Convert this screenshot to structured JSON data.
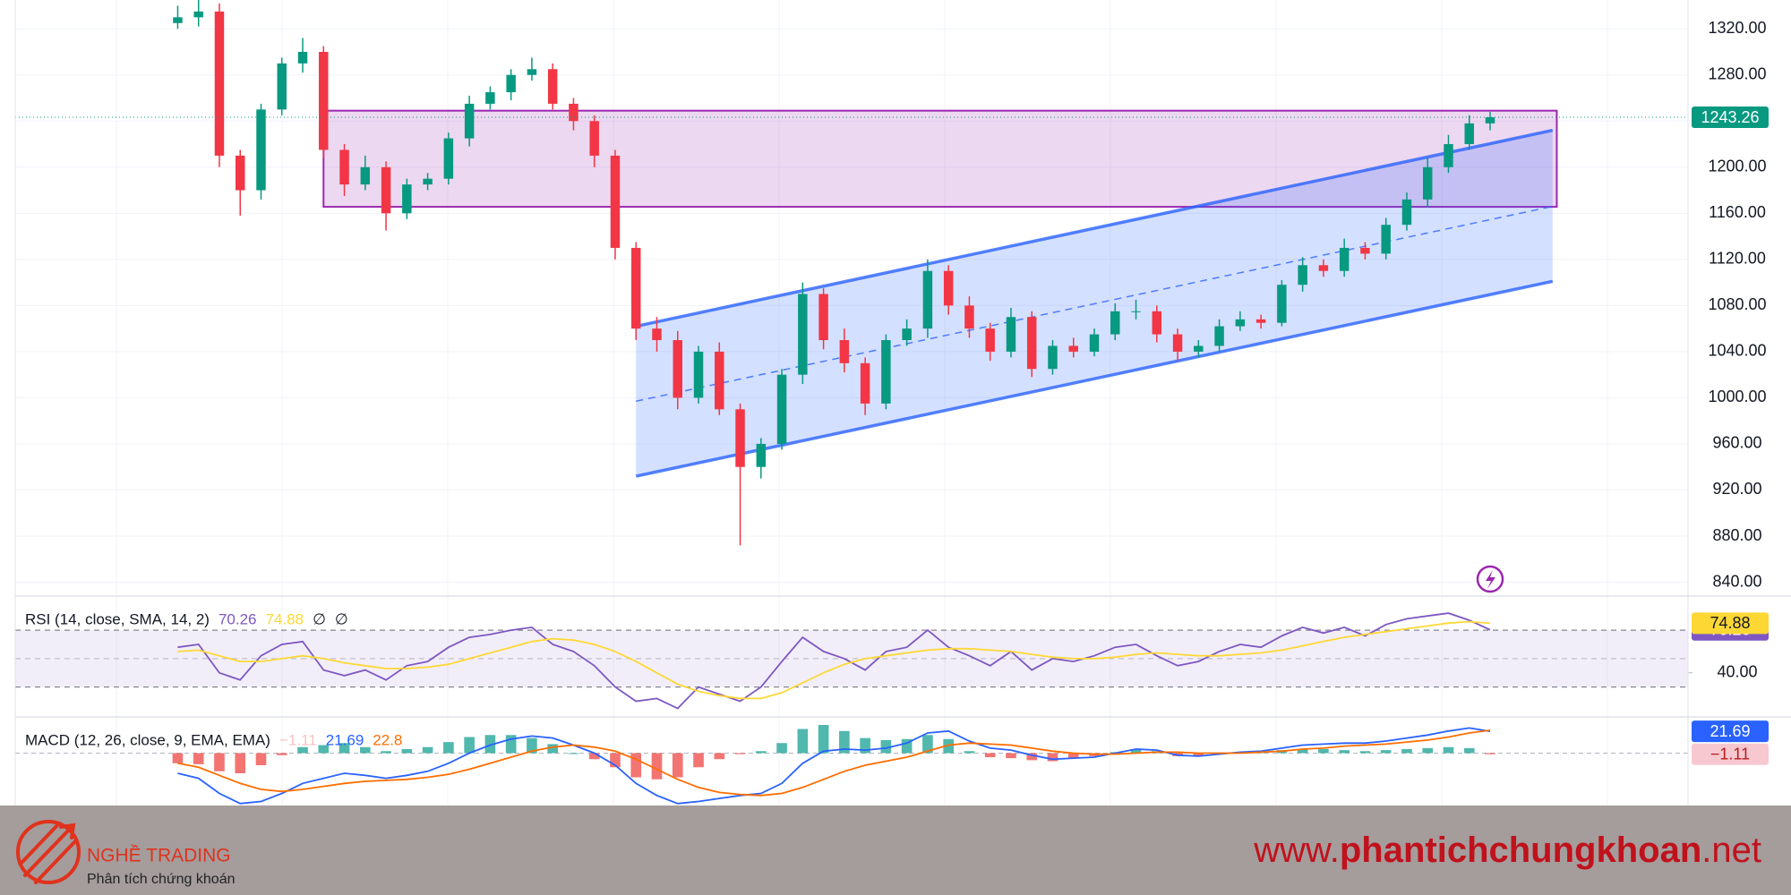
{
  "chart_data": [
    {
      "type": "candlestick",
      "xlim": [
        -7.8,
        72.5
      ],
      "ylim": [
        828,
        1345
      ],
      "yticks": [
        {
          "value": 840,
          "label": "840.00"
        },
        {
          "value": 880,
          "label": "880.00"
        },
        {
          "value": 920,
          "label": "920.00"
        },
        {
          "value": 960,
          "label": "960.00"
        },
        {
          "value": 1000,
          "label": "1000.00"
        },
        {
          "value": 1040,
          "label": "1040.00"
        },
        {
          "value": 1080,
          "label": "1080.00"
        },
        {
          "value": 1120,
          "label": "1120.00"
        },
        {
          "value": 1160,
          "label": "1160.00"
        },
        {
          "value": 1200,
          "label": "1200.00"
        },
        {
          "value": 1240,
          "label": "1240.00"
        },
        {
          "value": 1280,
          "label": "1280.00"
        },
        {
          "value": 1320,
          "label": "1320.00"
        }
      ],
      "grid": true,
      "up_color": "#089981",
      "down_color": "#f23645",
      "open": [
        1325,
        1330,
        1335,
        1210,
        1180,
        1250,
        1290,
        1300,
        1215,
        1185,
        1200,
        1160,
        1185,
        1190,
        1225,
        1255,
        1265,
        1280,
        1285,
        1255,
        1240,
        1210,
        1130,
        1060,
        1050,
        1000,
        1040,
        990,
        940,
        960,
        1020,
        1090,
        1050,
        1030,
        995,
        1050,
        1060,
        1110,
        1080,
        1060,
        1040,
        1070,
        1025,
        1045,
        1040,
        1055,
        1075,
        1075,
        1055,
        1040,
        1045,
        1062,
        1068,
        1065,
        1098,
        1115,
        1110,
        1130,
        1125,
        1150,
        1172,
        1200,
        1220,
        1238
      ],
      "high": [
        1340,
        1345,
        1342,
        1215,
        1255,
        1295,
        1312,
        1305,
        1220,
        1210,
        1205,
        1190,
        1195,
        1230,
        1262,
        1270,
        1285,
        1295,
        1290,
        1260,
        1245,
        1215,
        1135,
        1070,
        1058,
        1045,
        1048,
        995,
        965,
        1025,
        1100,
        1095,
        1060,
        1035,
        1055,
        1068,
        1120,
        1115,
        1088,
        1065,
        1078,
        1075,
        1050,
        1052,
        1060,
        1082,
        1085,
        1080,
        1060,
        1050,
        1068,
        1075,
        1072,
        1102,
        1122,
        1120,
        1138,
        1135,
        1156,
        1178,
        1208,
        1228,
        1245,
        1248
      ],
      "low": [
        1320,
        1322,
        1200,
        1158,
        1172,
        1245,
        1282,
        1208,
        1175,
        1180,
        1145,
        1155,
        1180,
        1185,
        1218,
        1250,
        1258,
        1275,
        1250,
        1232,
        1200,
        1120,
        1050,
        1040,
        990,
        995,
        985,
        872,
        930,
        955,
        1012,
        1042,
        1022,
        985,
        990,
        1045,
        1052,
        1072,
        1052,
        1032,
        1035,
        1018,
        1020,
        1035,
        1036,
        1050,
        1068,
        1048,
        1032,
        1035,
        1040,
        1058,
        1060,
        1062,
        1092,
        1105,
        1105,
        1120,
        1120,
        1145,
        1165,
        1195,
        1215,
        1232
      ],
      "close": [
        1330,
        1335,
        1210,
        1180,
        1250,
        1290,
        1300,
        1215,
        1185,
        1200,
        1160,
        1185,
        1190,
        1225,
        1255,
        1265,
        1280,
        1285,
        1255,
        1240,
        1210,
        1130,
        1060,
        1050,
        1000,
        1040,
        990,
        940,
        960,
        1020,
        1090,
        1050,
        1030,
        995,
        1050,
        1060,
        1110,
        1080,
        1060,
        1040,
        1070,
        1025,
        1045,
        1040,
        1055,
        1075,
        1075,
        1055,
        1040,
        1045,
        1062,
        1068,
        1065,
        1098,
        1115,
        1110,
        1130,
        1125,
        1150,
        1172,
        1200,
        1220,
        1238,
        1243.26
      ],
      "overlays": [
        {
          "type": "rectangle",
          "x": [
            7,
            66.2
          ],
          "y": [
            1165.6,
            1249
          ],
          "color": "#9c27b0"
        },
        {
          "type": "channel",
          "x": [
            22,
            66
          ],
          "upper": [
            1062,
            1232
          ],
          "middle": [
            997,
            1166
          ],
          "lower": [
            932,
            1101
          ],
          "color": "#2962ff"
        }
      ]
    },
    {
      "type": "rsi",
      "title": "RSI (14, close, SMA, 14, 2)",
      "legend_extra": [
        "∅",
        "∅"
      ],
      "xlim": [
        -7.8,
        72.5
      ],
      "ylim": [
        9,
        94
      ],
      "yticks": [
        {
          "value": 40,
          "label": "40.00"
        }
      ],
      "bands": [
        30,
        50,
        70
      ],
      "band_color": "#7e57c2",
      "series": [
        {
          "color": "#7e57c2",
          "values": [
            58,
            60,
            40,
            35,
            52,
            60,
            62,
            42,
            38,
            42,
            35,
            45,
            48,
            58,
            65,
            67,
            70,
            72,
            60,
            55,
            45,
            30,
            20,
            22,
            15,
            30,
            25,
            20,
            30,
            48,
            65,
            55,
            50,
            42,
            55,
            58,
            70,
            58,
            52,
            45,
            55,
            42,
            50,
            48,
            52,
            58,
            60,
            52,
            45,
            48,
            55,
            60,
            58,
            66,
            72,
            68,
            72,
            66,
            74,
            78,
            80,
            82,
            77,
            70.26
          ]
        },
        {
          "color": "#fdd835",
          "values": [
            55,
            56,
            52,
            48,
            48,
            50,
            52,
            50,
            47,
            45,
            43,
            43,
            44,
            46,
            50,
            54,
            58,
            62,
            64,
            63,
            60,
            55,
            48,
            40,
            32,
            27,
            24,
            22,
            22,
            26,
            33,
            40,
            46,
            50,
            52,
            54,
            56,
            57,
            57,
            56,
            55,
            53,
            51,
            50,
            50,
            51,
            53,
            54,
            53,
            52,
            52,
            53,
            54,
            56,
            59,
            62,
            65,
            67,
            69,
            71,
            73,
            75,
            76,
            74.88
          ]
        }
      ]
    },
    {
      "type": "macd",
      "title": "MACD (12, 26, close, 9, EMA, EMA)",
      "xlim": [
        -7.8,
        72.5
      ],
      "ylim": [
        -52,
        36
      ],
      "histogram": {
        "up_color": "#26a69a",
        "down_color": "#ef5350",
        "values": [
          -10,
          -11,
          -18,
          -20,
          -12,
          -2,
          6,
          8,
          10,
          6,
          2,
          4,
          6,
          11,
          16,
          18,
          18,
          15,
          9,
          0,
          -6,
          -14,
          -24,
          -26,
          -24,
          -14,
          -6,
          -1,
          2,
          10,
          24,
          28,
          22,
          15,
          13,
          14,
          18,
          14,
          2,
          -4,
          -5,
          -7,
          -8,
          -5,
          -3,
          1,
          4,
          2,
          -3,
          -3,
          -1,
          1,
          1,
          3,
          4,
          4,
          3,
          2,
          3,
          4,
          5,
          6,
          5,
          -1.11
        ],
        "last_value_label": "−1.11"
      },
      "series": [
        {
          "color": "#2962ff",
          "values": [
            -20,
            -25,
            -40,
            -50,
            -48,
            -40,
            -30,
            -25,
            -20,
            -22,
            -25,
            -22,
            -18,
            -10,
            0,
            8,
            14,
            17,
            15,
            8,
            0,
            -12,
            -30,
            -42,
            -50,
            -48,
            -45,
            -42,
            -40,
            -30,
            -10,
            2,
            4,
            3,
            5,
            10,
            20,
            22,
            12,
            5,
            3,
            -2,
            -6,
            -5,
            -4,
            0,
            4,
            3,
            -2,
            -3,
            -1,
            1,
            2,
            5,
            8,
            9,
            10,
            10,
            12,
            15,
            18,
            22,
            25,
            21.69
          ]
        },
        {
          "color": "#ff6d00",
          "values": [
            -10,
            -14,
            -22,
            -30,
            -36,
            -38,
            -36,
            -33,
            -30,
            -28,
            -27,
            -26,
            -24,
            -21,
            -16,
            -10,
            -4,
            2,
            6,
            8,
            6,
            2,
            -6,
            -16,
            -26,
            -34,
            -39,
            -41,
            -42,
            -40,
            -34,
            -26,
            -18,
            -12,
            -8,
            -4,
            2,
            8,
            10,
            9,
            8,
            5,
            2,
            0,
            -1,
            -1,
            0,
            1,
            1,
            0,
            0,
            0,
            1,
            2,
            4,
            5,
            7,
            8,
            9,
            11,
            13,
            16,
            20,
            22.8
          ]
        }
      ]
    }
  ],
  "branding": {
    "name": "NGHỀ TRADING",
    "tagline": "Phân tích chứng khoán",
    "url_prefix": "www.",
    "url_main": "phantichchungkhoan",
    "url_suffix": ".net"
  }
}
